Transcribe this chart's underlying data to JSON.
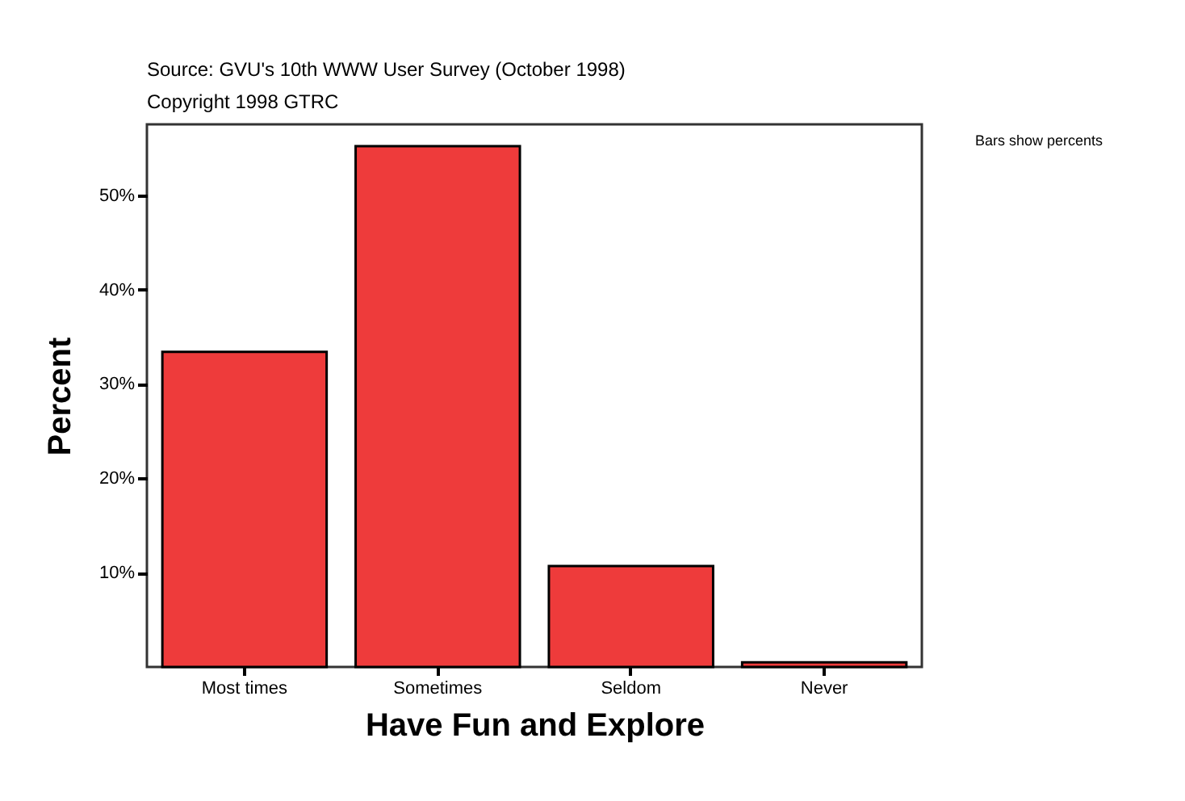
{
  "chart_data": {
    "type": "bar",
    "title": "Source: GVU's 10th WWW User Survey (October 1998)",
    "subtitle": "Copyright 1998 GTRC",
    "xlabel": "Have Fun and Explore",
    "ylabel": "Percent",
    "annotations": [
      "Bars show percents"
    ],
    "categories": [
      "Most times",
      "Sometimes",
      "Seldom",
      "Never"
    ],
    "values": [
      33.4,
      55.2,
      10.7,
      0.5
    ],
    "color": "#ee3b3b",
    "ylim": [
      0,
      57.5
    ],
    "yticks": [
      {
        "value": 10,
        "label": "10%"
      },
      {
        "value": 20,
        "label": "20%"
      },
      {
        "value": 30,
        "label": "30%"
      },
      {
        "value": 40,
        "label": "40%"
      },
      {
        "value": 50,
        "label": "50%"
      }
    ]
  }
}
